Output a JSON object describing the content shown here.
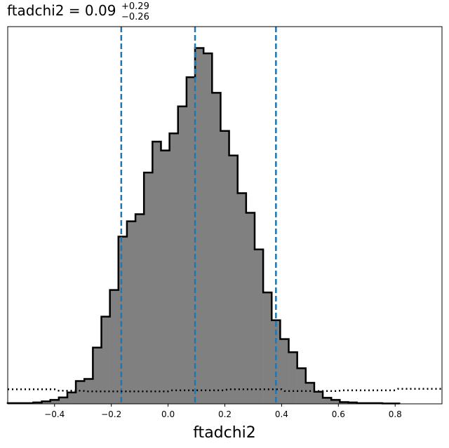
{
  "chart_data": {
    "type": "histogram",
    "title": {
      "prefix": "ftadchi2 = 0.09",
      "sup": "+0.29",
      "sub": "−0.26"
    },
    "xlabel": "ftadchi2",
    "ylabel": "",
    "xlim": [
      -0.565,
      0.965
    ],
    "ylim": [
      0,
      1.06
    ],
    "xticks": [
      -0.4,
      -0.2,
      0.0,
      0.2,
      0.4,
      0.6,
      0.8
    ],
    "xtick_labels": [
      "−0.4",
      "−0.2",
      "0.0",
      "0.2",
      "0.4",
      "0.6",
      "0.8"
    ],
    "bins": {
      "edges": [
        -0.565,
        -0.535,
        -0.505,
        -0.475,
        -0.445,
        -0.415,
        -0.385,
        -0.355,
        -0.325,
        -0.295,
        -0.265,
        -0.235,
        -0.205,
        -0.175,
        -0.145,
        -0.115,
        -0.085,
        -0.055,
        -0.025,
        0.005,
        0.035,
        0.065,
        0.095,
        0.125,
        0.155,
        0.185,
        0.215,
        0.245,
        0.275,
        0.305,
        0.335,
        0.365,
        0.395,
        0.425,
        0.455,
        0.485,
        0.515,
        0.545,
        0.575,
        0.605,
        0.635,
        0.665,
        0.695,
        0.725,
        0.755,
        0.785,
        0.815
      ],
      "counts": [
        0.002,
        0.002,
        0.002,
        0.004,
        0.007,
        0.011,
        0.018,
        0.032,
        0.064,
        0.07,
        0.158,
        0.245,
        0.32,
        0.47,
        0.513,
        0.533,
        0.65,
        0.737,
        0.712,
        0.76,
        0.836,
        0.918,
        1.0,
        0.985,
        0.874,
        0.767,
        0.698,
        0.592,
        0.537,
        0.434,
        0.313,
        0.235,
        0.182,
        0.145,
        0.1,
        0.059,
        0.034,
        0.017,
        0.011,
        0.005,
        0.004,
        0.002,
        0.002,
        0.002,
        0.001,
        0.001
      ]
    },
    "vlines": [
      -0.165,
      0.095,
      0.38
    ],
    "prior_line": {
      "x": [
        -0.565,
        -0.4,
        -0.39,
        -0.3,
        -0.29,
        0.0,
        0.01,
        0.2,
        0.21,
        0.4,
        0.41,
        0.6,
        0.61,
        0.8,
        0.81,
        0.965
      ],
      "y": [
        0.041,
        0.041,
        0.037,
        0.037,
        0.035,
        0.035,
        0.038,
        0.038,
        0.041,
        0.041,
        0.036,
        0.036,
        0.038,
        0.038,
        0.042,
        0.042
      ]
    },
    "colors": {
      "fill": "#808080",
      "edge": "#000000",
      "vline": "#1f77b4",
      "prior": "#000000"
    },
    "grid": false,
    "legend": "none"
  }
}
